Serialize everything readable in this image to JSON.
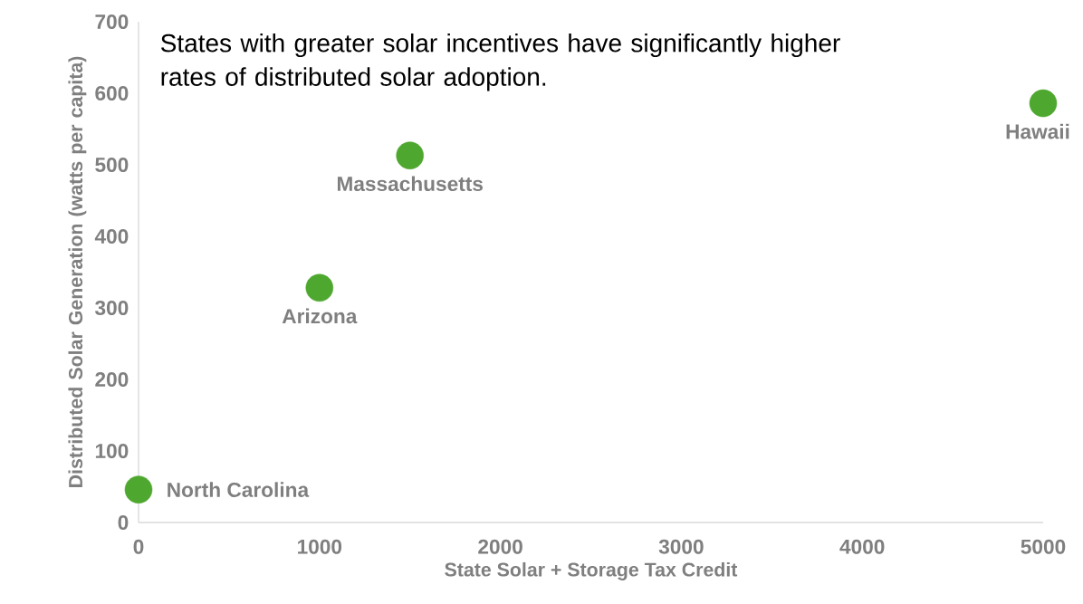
{
  "chart_data": {
    "type": "scatter",
    "title": "States with greater solar incentives have significantly higher rates of distributed solar adoption.",
    "xlabel": "State Solar + Storage Tax Credit",
    "ylabel": "Distributed Solar Generation (watts per capita)",
    "x": [
      0,
      1000,
      1500,
      5000
    ],
    "series": [
      {
        "color": "#4ea72e",
        "values": [
          46,
          328,
          513,
          586
        ]
      }
    ],
    "annotations": [
      {
        "text": "North Carolina",
        "x": 0,
        "y": 46
      },
      {
        "text": "Arizona",
        "x": 1000,
        "y": 328
      },
      {
        "text": "Massachusetts",
        "x": 1500,
        "y": 513
      },
      {
        "text": "Hawaii",
        "x": 5000,
        "y": 586
      }
    ],
    "marker": "circle",
    "xlim": [
      0,
      5000
    ],
    "ylim": [
      0,
      700
    ],
    "xticks": [
      0,
      1000,
      2000,
      3000,
      4000,
      5000
    ],
    "yticks": [
      0,
      100,
      200,
      300,
      400,
      500,
      600,
      700
    ]
  }
}
